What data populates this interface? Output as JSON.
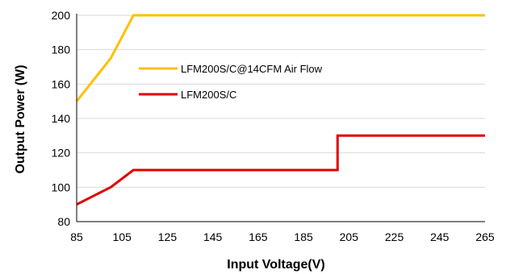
{
  "chart_data": {
    "type": "line",
    "xlabel": "Input  Voltage(V)",
    "ylabel": "Output Power (W)",
    "xlim": [
      85,
      265
    ],
    "ylim": [
      80,
      200
    ],
    "xticks": [
      85,
      105,
      125,
      145,
      165,
      185,
      205,
      225,
      245,
      265
    ],
    "yticks": [
      80,
      100,
      120,
      140,
      160,
      180,
      200
    ],
    "grid": "horizontal",
    "legend_position": "upper-left inside plot",
    "series": [
      {
        "name": "LFM200S/C@14CFM Air Flow",
        "color": "#ffc000",
        "x": [
          85,
          100,
          110,
          265
        ],
        "y": [
          150,
          175,
          200,
          200
        ]
      },
      {
        "name": "LFM200S/C",
        "color": "#e00000",
        "x": [
          85,
          100,
          110,
          200,
          200,
          265
        ],
        "y": [
          90,
          100,
          110,
          110,
          130,
          130
        ]
      }
    ]
  }
}
